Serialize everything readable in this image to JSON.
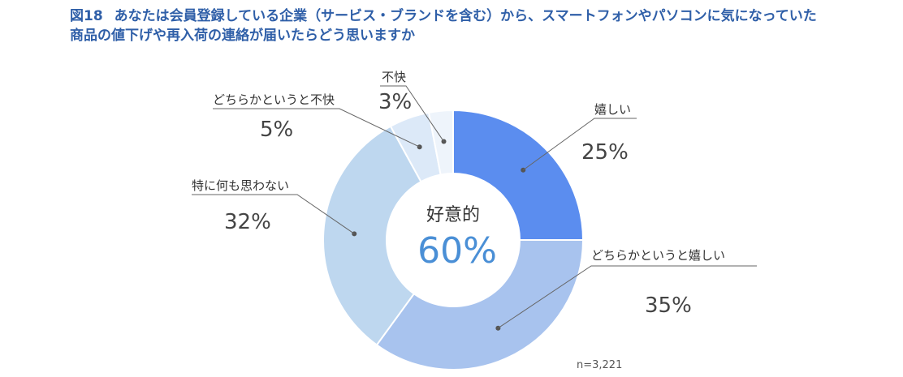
{
  "title": {
    "figure_label": "図18",
    "line1": "あなたは会員登録している企業（サービス・ブランドを含む）から、スマートフォンやパソコンに気になっていた",
    "line2": "商品の値下げや再入荷の連絡が届いたらどう思いますか"
  },
  "chart_data": {
    "type": "pie",
    "variant": "donut",
    "slices": [
      {
        "label": "嬉しい",
        "value": 25,
        "value_label": "25%",
        "color": "#5b8def"
      },
      {
        "label": "どちらかというと嬉しい",
        "value": 35,
        "value_label": "35%",
        "color": "#a8c3ee"
      },
      {
        "label": "特に何も思わない",
        "value": 32,
        "value_label": "32%",
        "color": "#bed7ef"
      },
      {
        "label": "どちらかというと不快",
        "value": 5,
        "value_label": "5%",
        "color": "#dce9f8"
      },
      {
        "label": "不快",
        "value": 3,
        "value_label": "3%",
        "color": "#eef4fb"
      }
    ],
    "center": {
      "caption": "好意的",
      "value_label": "60%",
      "color": "#4a8fd6"
    },
    "note": "n=3,221"
  }
}
